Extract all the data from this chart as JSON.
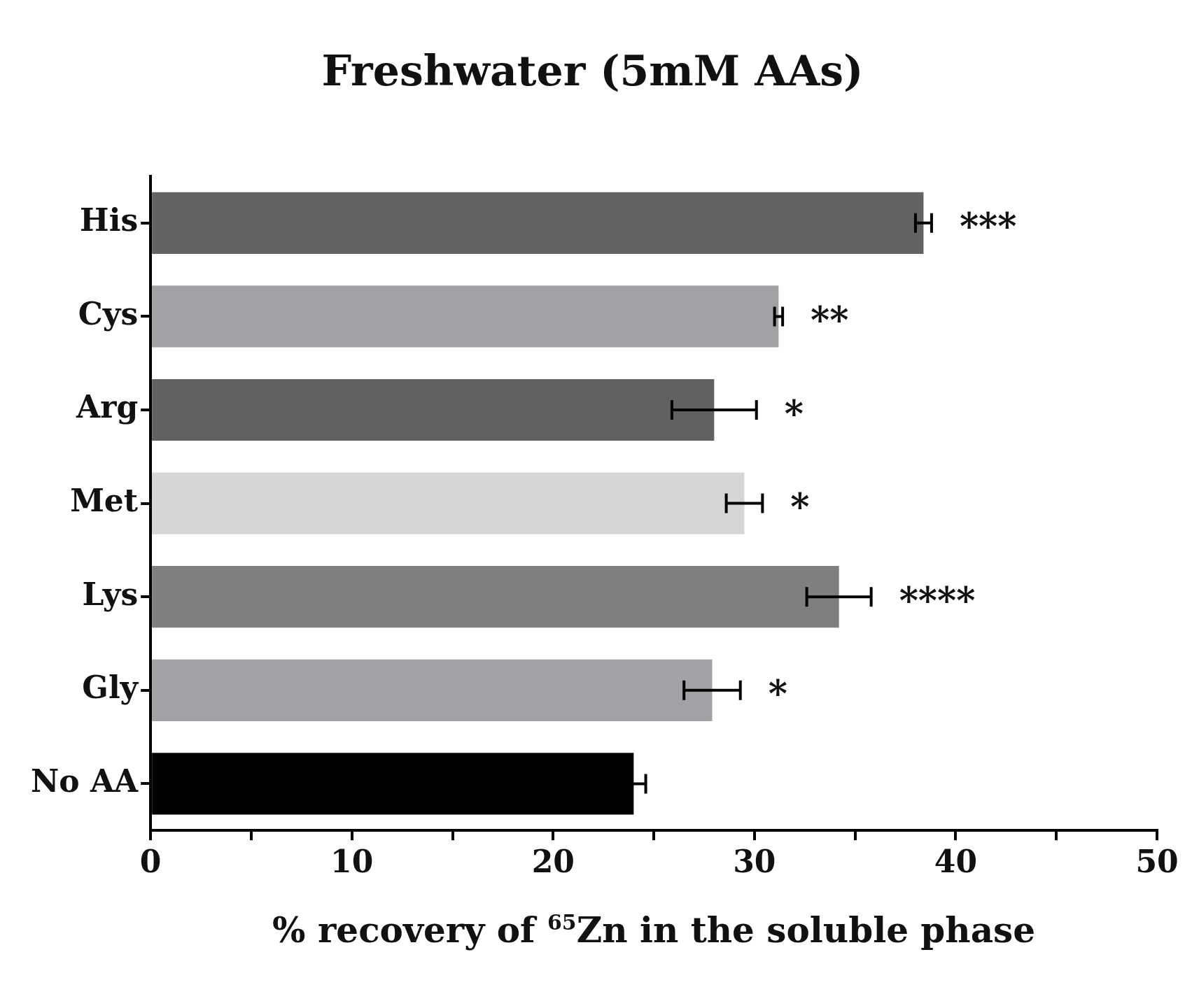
{
  "chart_data": {
    "type": "bar",
    "orientation": "horizontal",
    "title": "Freshwater (5mM AAs)",
    "xlabel": "% recovery of $^{65}$Zn in the soluble phase",
    "categories": [
      "His",
      "Cys",
      "Arg",
      "Met",
      "Lys",
      "Gly",
      "No AA"
    ],
    "values": [
      38.4,
      31.2,
      28.0,
      29.5,
      34.2,
      27.9,
      24.0
    ],
    "errors": [
      0.4,
      0.2,
      2.1,
      0.9,
      1.6,
      1.4,
      0.6
    ],
    "colors": [
      "#636363",
      "#a2a1a6",
      "#616161",
      "#d6d6d6",
      "#7f7f7f",
      "#a2a1a6",
      "#000000"
    ],
    "xlim": [
      0,
      50
    ],
    "xticks": [
      0,
      {
        "value": 5,
        "label": null
      },
      10,
      {
        "value": 15,
        "label": null
      },
      20,
      {
        "value": 25,
        "label": null
      },
      30,
      {
        "value": 35,
        "label": null
      },
      40,
      {
        "value": 45,
        "label": null
      },
      50
    ],
    "grid": false,
    "legend": false,
    "value_labels": [
      "***",
      "**",
      "*",
      "*",
      "****",
      "*",
      null
    ]
  }
}
